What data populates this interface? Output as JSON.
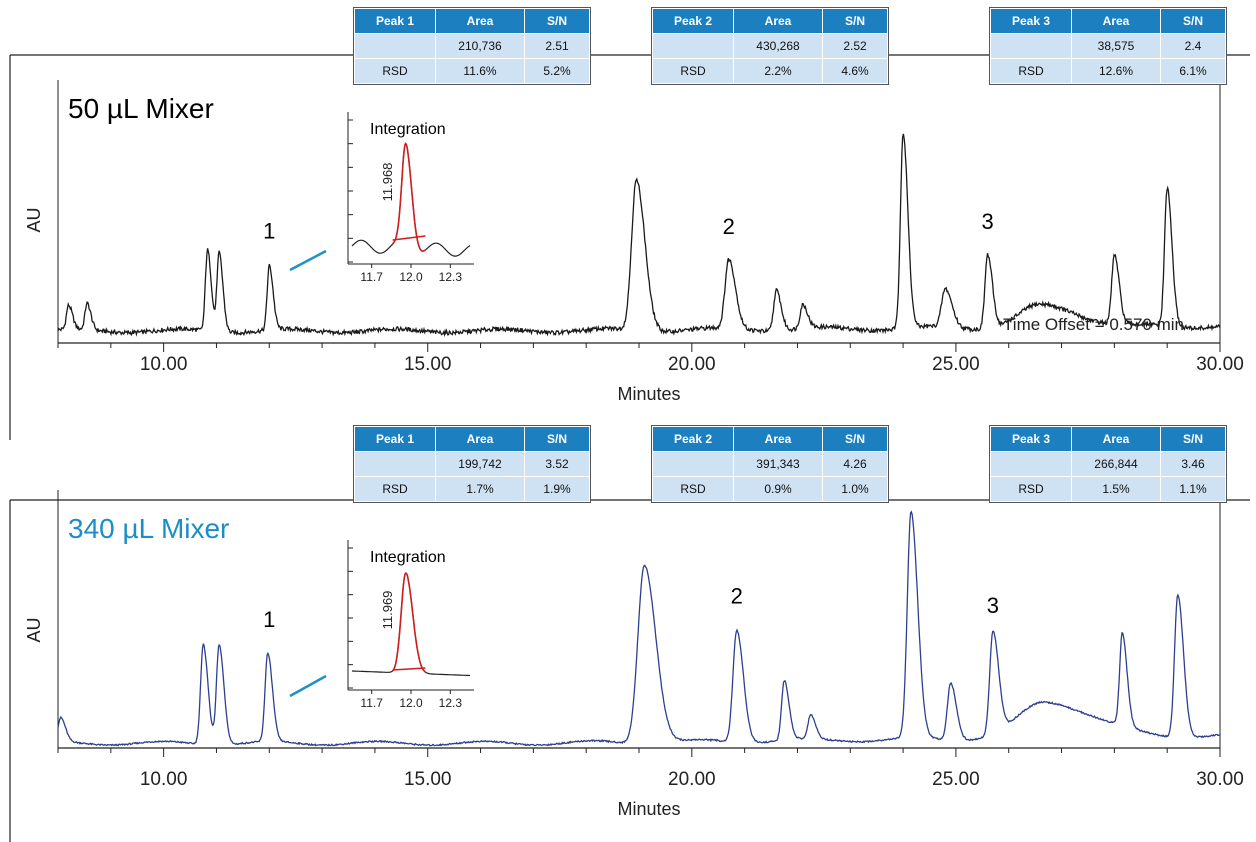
{
  "colors": {
    "top_trace": "#1a1a1a",
    "bottom_trace": "#2e3f8f",
    "integration": "#cc1f1f",
    "table_header": "#1c7fc0",
    "table_cell": "#cfe2f3",
    "label_bottom": "#1b8ec6",
    "connector": "#1c93c8"
  },
  "chart_data": [
    {
      "type": "line",
      "title": "50 µL Mixer",
      "xlabel": "Minutes",
      "ylabel": "AU",
      "xlim": [
        8.0,
        30.0
      ],
      "xticks": [
        "10.00",
        "15.00",
        "20.00",
        "25.00",
        "30.00"
      ],
      "annotation": "Time Offset = 0.570 min",
      "peak_labels": [
        {
          "label": "1",
          "x": 12.0
        },
        {
          "label": "2",
          "x": 20.7
        },
        {
          "label": "3",
          "x": 25.6
        }
      ],
      "baseline": 0.03,
      "peaks": [
        {
          "x": 8.2,
          "h": 0.1,
          "w": 0.04
        },
        {
          "x": 8.55,
          "h": 0.11,
          "w": 0.04
        },
        {
          "x": 10.83,
          "h": 0.34,
          "w": 0.04
        },
        {
          "x": 11.05,
          "h": 0.33,
          "w": 0.04
        },
        {
          "x": 12.0,
          "h": 0.27,
          "w": 0.04
        },
        {
          "x": 18.95,
          "h": 0.63,
          "w": 0.09
        },
        {
          "x": 20.7,
          "h": 0.29,
          "w": 0.07
        },
        {
          "x": 21.6,
          "h": 0.17,
          "w": 0.05
        },
        {
          "x": 22.1,
          "h": 0.1,
          "w": 0.05
        },
        {
          "x": 24.0,
          "h": 0.82,
          "w": 0.05
        },
        {
          "x": 24.8,
          "h": 0.16,
          "w": 0.07
        },
        {
          "x": 25.6,
          "h": 0.31,
          "w": 0.05
        },
        {
          "x": 26.6,
          "h": 0.09,
          "w": 0.4
        },
        {
          "x": 28.0,
          "h": 0.29,
          "w": 0.05
        },
        {
          "x": 29.0,
          "h": 0.58,
          "w": 0.05
        }
      ],
      "inset": {
        "title": "Integration",
        "peak_label": "11.968",
        "xticks": [
          "11.7",
          "12.0",
          "12.3"
        ],
        "xlim": [
          11.55,
          12.45
        ],
        "peak": {
          "x": 11.96,
          "h": 1.0,
          "w": 0.03
        },
        "noise": "wavy"
      },
      "table_groups": [
        {
          "header": [
            "Peak 1",
            "Area",
            "S/N"
          ],
          "rows": [
            [
              "",
              "210,736",
              "2.51"
            ],
            [
              "RSD",
              "11.6%",
              "5.2%"
            ]
          ]
        },
        {
          "header": [
            "Peak 2",
            "Area",
            "S/N"
          ],
          "rows": [
            [
              "",
              "430,268",
              "2.52"
            ],
            [
              "RSD",
              "2.2%",
              "4.6%"
            ]
          ]
        },
        {
          "header": [
            "Peak 3",
            "Area",
            "S/N"
          ],
          "rows": [
            [
              "",
              "38,575",
              "2.4"
            ],
            [
              "RSD",
              "12.6%",
              "6.1%"
            ]
          ]
        }
      ]
    },
    {
      "type": "line",
      "title": "340 µL Mixer",
      "xlabel": "Minutes",
      "ylabel": "AU",
      "xlim": [
        8.0,
        30.0
      ],
      "xticks": [
        "10.00",
        "15.00",
        "20.00",
        "25.00",
        "30.00"
      ],
      "peak_labels": [
        {
          "label": "1",
          "x": 12.0
        },
        {
          "label": "2",
          "x": 20.85
        },
        {
          "label": "3",
          "x": 25.7
        }
      ],
      "baseline": 0.02,
      "peaks": [
        {
          "x": 8.05,
          "h": 0.1,
          "w": 0.05
        },
        {
          "x": 10.75,
          "h": 0.42,
          "w": 0.05
        },
        {
          "x": 11.05,
          "h": 0.42,
          "w": 0.05
        },
        {
          "x": 11.97,
          "h": 0.37,
          "w": 0.05
        },
        {
          "x": 19.1,
          "h": 0.75,
          "w": 0.12
        },
        {
          "x": 20.85,
          "h": 0.47,
          "w": 0.07
        },
        {
          "x": 21.75,
          "h": 0.25,
          "w": 0.05
        },
        {
          "x": 22.25,
          "h": 0.1,
          "w": 0.05
        },
        {
          "x": 24.15,
          "h": 0.95,
          "w": 0.07
        },
        {
          "x": 24.9,
          "h": 0.24,
          "w": 0.06
        },
        {
          "x": 25.7,
          "h": 0.43,
          "w": 0.06
        },
        {
          "x": 26.7,
          "h": 0.15,
          "w": 0.5
        },
        {
          "x": 28.15,
          "h": 0.39,
          "w": 0.05
        },
        {
          "x": 29.2,
          "h": 0.6,
          "w": 0.06
        }
      ],
      "inset": {
        "title": "Integration",
        "peak_label": "11.969",
        "xticks": [
          "11.7",
          "12.0",
          "12.3"
        ],
        "xlim": [
          11.55,
          12.45
        ],
        "peak": {
          "x": 11.96,
          "h": 1.0,
          "w": 0.035
        },
        "noise": "flat"
      },
      "table_groups": [
        {
          "header": [
            "Peak 1",
            "Area",
            "S/N"
          ],
          "rows": [
            [
              "",
              "199,742",
              "3.52"
            ],
            [
              "RSD",
              "1.7%",
              "1.9%"
            ]
          ]
        },
        {
          "header": [
            "Peak 2",
            "Area",
            "S/N"
          ],
          "rows": [
            [
              "",
              "391,343",
              "4.26"
            ],
            [
              "RSD",
              "0.9%",
              "1.0%"
            ]
          ]
        },
        {
          "header": [
            "Peak 3",
            "Area",
            "S/N"
          ],
          "rows": [
            [
              "",
              "266,844",
              "3.46"
            ],
            [
              "RSD",
              "1.5%",
              "1.1%"
            ]
          ]
        }
      ]
    }
  ]
}
